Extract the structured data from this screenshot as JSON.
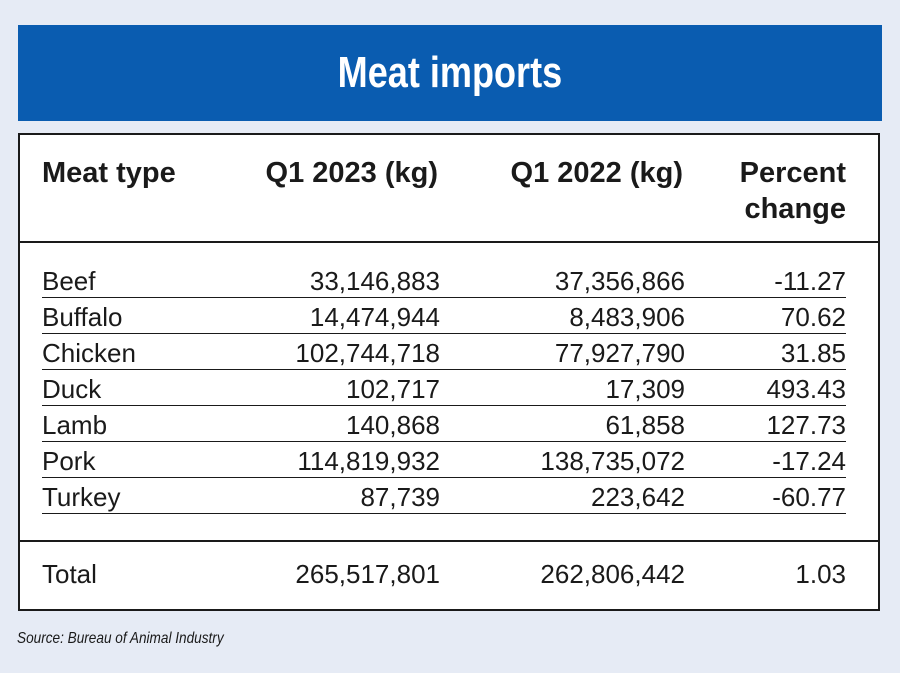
{
  "title": "Meat imports",
  "source": "Source: Bureau of Animal Industry",
  "chart_data": {
    "type": "table",
    "title": "Meat imports",
    "columns": [
      "Meat type",
      "Q1 2023 (kg)",
      "Q1 2022 (kg)",
      "Percent change"
    ],
    "percent_header_line1": "Percent",
    "percent_header_line2": "change",
    "rows": [
      {
        "type": "Beef",
        "q1_2023": "33,146,883",
        "q1_2022": "37,356,866",
        "pct": "-11.27"
      },
      {
        "type": "Buffalo",
        "q1_2023": "14,474,944",
        "q1_2022": "8,483,906",
        "pct": "70.62"
      },
      {
        "type": "Chicken",
        "q1_2023": "102,744,718",
        "q1_2022": "77,927,790",
        "pct": "31.85"
      },
      {
        "type": "Duck",
        "q1_2023": "102,717",
        "q1_2022": "17,309",
        "pct": "493.43"
      },
      {
        "type": "Lamb",
        "q1_2023": "140,868",
        "q1_2022": "61,858",
        "pct": "127.73"
      },
      {
        "type": "Pork",
        "q1_2023": "114,819,932",
        "q1_2022": "138,735,072",
        "pct": "-17.24"
      },
      {
        "type": "Turkey",
        "q1_2023": "87,739",
        "q1_2022": "223,642",
        "pct": "-60.77"
      }
    ],
    "total": {
      "label": "Total",
      "q1_2023": "265,517,801",
      "q1_2022": "262,806,442",
      "pct": "1.03"
    }
  },
  "colors": {
    "title_bar": "#0a5cb0",
    "background": "#e6ebf5",
    "table_bg": "#ffffff",
    "text": "#1a1a1a"
  }
}
